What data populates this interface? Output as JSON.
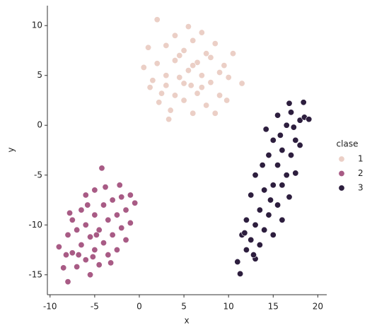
{
  "chart_data": {
    "type": "scatter",
    "xlabel": "x",
    "ylabel": "y",
    "xlim": [
      -10.3,
      21
    ],
    "ylim": [
      -17,
      12
    ],
    "xticks": [
      -10,
      -5,
      0,
      5,
      10,
      15,
      20
    ],
    "yticks": [
      -15,
      -10,
      -5,
      0,
      5,
      10
    ],
    "legend_title": "clase",
    "legend": "right",
    "series": [
      {
        "name": "1",
        "color": "#ebcfc6",
        "x": [
          0.5,
          1,
          1.5,
          2,
          2,
          2.5,
          3,
          3,
          3.5,
          3.3,
          4,
          4,
          4,
          4.5,
          5,
          5,
          5.5,
          5.5,
          5.8,
          6,
          6,
          6.5,
          6.5,
          7,
          7,
          7.5,
          7.5,
          8,
          8,
          8.5,
          8.5,
          9,
          9,
          9.5,
          10,
          10.5,
          11.5,
          3,
          4.5,
          6,
          7,
          5,
          2.2,
          9.8,
          1.2
        ],
        "values": [
          5.8,
          7.8,
          4.5,
          10.6,
          6.2,
          3.2,
          8,
          5,
          1.5,
          0.6,
          9,
          6.5,
          3,
          4.8,
          7.5,
          2.5,
          9.9,
          5.5,
          4,
          1.2,
          8.5,
          6.3,
          3.2,
          9.3,
          5,
          7.2,
          2,
          4.3,
          6.8,
          1.2,
          8.2,
          5.3,
          3,
          6,
          4.8,
          7.2,
          4.2,
          4,
          7,
          6,
          3.8,
          4.2,
          2.3,
          2.5,
          3.8
        ]
      },
      {
        "name": "2",
        "color": "#a85b85",
        "x": [
          -9,
          -8.5,
          -8,
          -8,
          -7.5,
          -7.5,
          -7,
          -7,
          -6.5,
          -6.5,
          -6,
          -6,
          -6,
          -5.5,
          -5.5,
          -5,
          -5,
          -5,
          -4.5,
          -4.5,
          -4,
          -4,
          -4.2,
          -3.5,
          -3.5,
          -3,
          -3,
          -2.5,
          -2.5,
          -2,
          -2,
          -1.5,
          -1.5,
          -1,
          -0.5,
          -1,
          -7.8,
          -6.8,
          -5.8,
          -4.8,
          -3.8,
          -3.2,
          -2.2,
          -8.2,
          -5.2
        ],
        "values": [
          -12.2,
          -14.3,
          -11,
          -15.7,
          -9.5,
          -12.8,
          -10.5,
          -14.2,
          -8.5,
          -12,
          -10,
          -13.5,
          -7,
          -11.2,
          -15,
          -9,
          -12.5,
          -6.5,
          -10.5,
          -14,
          -8,
          -11.8,
          -4.3,
          -9.5,
          -13,
          -7.5,
          -11,
          -9,
          -12.5,
          -7.2,
          -10.3,
          -8.5,
          -11.5,
          -7,
          -7.8,
          -9.8,
          -8.8,
          -13,
          -8,
          -11,
          -6.2,
          -13.8,
          -6,
          -13,
          -13.2
        ]
      },
      {
        "name": "3",
        "color": "#2d1e3e",
        "x": [
          11,
          11.3,
          11.5,
          12,
          12,
          12.5,
          12.5,
          13,
          13,
          13,
          13.5,
          13.5,
          13.8,
          14,
          14,
          14.2,
          14.5,
          14.5,
          15,
          15,
          15,
          15.5,
          15.5,
          15.5,
          16,
          16,
          16,
          16.5,
          16.5,
          16.8,
          17,
          17,
          17.5,
          17.5,
          18,
          18,
          18.4,
          18.5,
          19,
          16.8,
          12.8,
          11.8,
          14.7,
          17.3,
          15.8
        ],
        "values": [
          -13.7,
          -14.9,
          -11,
          -12.5,
          -9.5,
          -11.5,
          -7,
          -13.4,
          -10,
          -5,
          -8.5,
          -12,
          -4,
          -10.5,
          -6.5,
          -0.4,
          -9,
          -3,
          -11,
          -6,
          -1.5,
          -8,
          -4,
          1,
          -9.5,
          -2.5,
          -6,
          -5,
          0,
          -7.2,
          -3,
          1.3,
          -1.5,
          -4.8,
          0.5,
          -2,
          2.3,
          0.8,
          0.6,
          2.2,
          -13,
          -10.8,
          -7.5,
          -0.2,
          -1
        ]
      }
    ]
  }
}
